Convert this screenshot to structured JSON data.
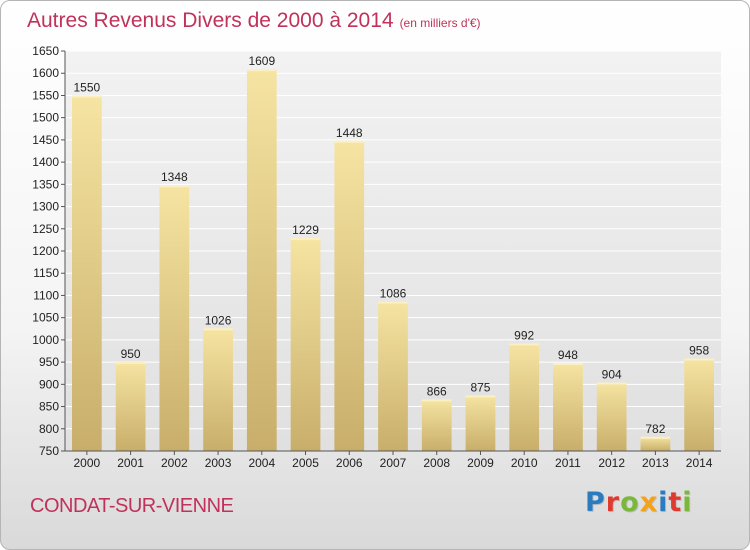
{
  "chart_data": {
    "type": "bar",
    "title": "Autres Revenus Divers de 2000 à 2014",
    "subtitle": "(en milliers d'€)",
    "categories": [
      "2000",
      "2001",
      "2002",
      "2003",
      "2004",
      "2005",
      "2006",
      "2007",
      "2008",
      "2009",
      "2010",
      "2011",
      "2012",
      "2013",
      "2014"
    ],
    "values": [
      1550,
      950,
      1348,
      1026,
      1609,
      1229,
      1448,
      1086,
      866,
      875,
      992,
      948,
      904,
      782,
      958
    ],
    "ylim": [
      750,
      1650
    ],
    "yticks": [
      750,
      800,
      850,
      900,
      950,
      1000,
      1050,
      1100,
      1150,
      1200,
      1250,
      1300,
      1350,
      1400,
      1450,
      1500,
      1550,
      1600,
      1650
    ],
    "grid": true,
    "xlabel": "",
    "ylabel": ""
  },
  "footer": {
    "commune": "CONDAT-SUR-VIENNE",
    "logo_text": "Proxiti",
    "logo_colors": [
      "#2b7bbf",
      "#e03a2f",
      "#7ab83b",
      "#f3a21a",
      "#2b7bbf",
      "#e03a2f",
      "#7ab83b"
    ]
  },
  "colors": {
    "title": "#c0325a",
    "bar_light": "#f6e4a2",
    "bar_dark": "#c8ae6a",
    "grid": "#ffffff"
  }
}
